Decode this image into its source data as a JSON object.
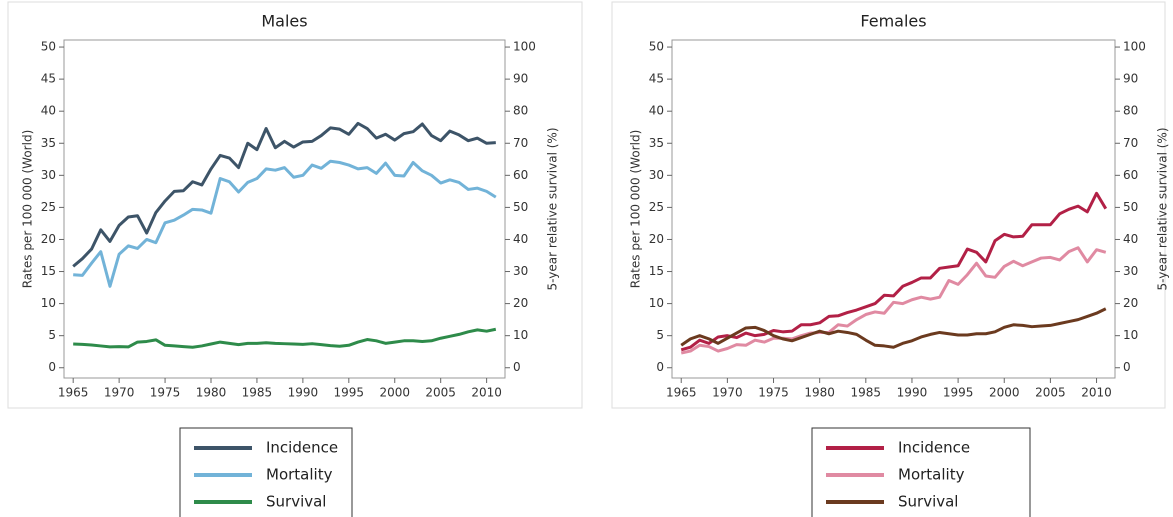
{
  "chart_data": [
    {
      "type": "line",
      "title": "Males",
      "ylabel": "Rates per 100 000 (World)",
      "y2label": "5-year relative survival (%)",
      "x": [
        1965,
        1966,
        1967,
        1968,
        1969,
        1970,
        1971,
        1972,
        1973,
        1974,
        1975,
        1976,
        1977,
        1978,
        1979,
        1980,
        1981,
        1982,
        1983,
        1984,
        1985,
        1986,
        1987,
        1988,
        1989,
        1990,
        1991,
        1992,
        1993,
        1994,
        1995,
        1996,
        1997,
        1998,
        1999,
        2000,
        2001,
        2002,
        2003,
        2004,
        2005,
        2006,
        2007,
        2008,
        2009,
        2010,
        2011
      ],
      "xlim": [
        1964,
        2012
      ],
      "xticks": [
        1965,
        1970,
        1975,
        1980,
        1985,
        1990,
        1995,
        2000,
        2005,
        2010
      ],
      "ylim": [
        -1.6,
        51.1
      ],
      "yticks": [
        0,
        5,
        10,
        15,
        20,
        25,
        30,
        35,
        40,
        45,
        50
      ],
      "y2lim": [
        -3.2,
        102.2
      ],
      "y2ticks": [
        0,
        10,
        20,
        30,
        40,
        50,
        60,
        70,
        80,
        90,
        100
      ],
      "y_tick_color": "#4a6580",
      "y2_tick_color": "#3a9a6a",
      "legend": "bottom",
      "series": [
        {
          "name": "Incidence",
          "color": "#3d5468",
          "values": [
            15.8,
            17,
            18.5,
            21.5,
            19.7,
            22.2,
            23.5,
            23.7,
            21,
            24.2,
            26,
            27.5,
            27.6,
            29,
            28.5,
            31,
            33.1,
            32.7,
            31.2,
            35,
            34,
            37.3,
            34.3,
            35.3,
            34.4,
            35.2,
            35.3,
            36.2,
            37.4,
            37.2,
            36.4,
            38.1,
            37.3,
            35.8,
            36.4,
            35.5,
            36.5,
            36.8,
            38,
            36.2,
            35.4,
            36.9,
            36.3,
            35.4,
            35.8,
            35,
            35.1
          ]
        },
        {
          "name": "Mortality",
          "color": "#72b3d8",
          "values": [
            14.5,
            14.4,
            16.3,
            18.1,
            12.7,
            17.7,
            19,
            18.6,
            20,
            19.5,
            22.6,
            23,
            23.8,
            24.7,
            24.6,
            24.1,
            29.5,
            29,
            27.4,
            28.9,
            29.5,
            31,
            30.8,
            31.2,
            29.7,
            30,
            31.6,
            31.1,
            32.2,
            32,
            31.6,
            31,
            31.2,
            30.3,
            31.9,
            30,
            29.9,
            32,
            30.7,
            30,
            28.8,
            29.3,
            28.9,
            27.8,
            28,
            27.5,
            26.6
          ]
        },
        {
          "name": "Survival",
          "color": "#2e8b4a",
          "axis": "y2",
          "values": [
            7.4,
            7.3,
            7.1,
            6.8,
            6.5,
            6.6,
            6.5,
            8,
            8.2,
            8.7,
            7,
            6.8,
            6.6,
            6.4,
            6.8,
            7.4,
            8,
            7.6,
            7.2,
            7.6,
            7.6,
            7.8,
            7.6,
            7.5,
            7.4,
            7.3,
            7.5,
            7.2,
            6.9,
            6.7,
            7,
            8,
            8.8,
            8.4,
            7.6,
            8,
            8.4,
            8.4,
            8.2,
            8.4,
            9.2,
            9.8,
            10.4,
            11.2,
            11.8,
            11.4,
            12
          ]
        }
      ]
    },
    {
      "type": "line",
      "title": "Females",
      "ylabel": "Rates per 100 000 (World)",
      "y2label": "5-year relative survival (%)",
      "x": [
        1965,
        1966,
        1967,
        1968,
        1969,
        1970,
        1971,
        1972,
        1973,
        1974,
        1975,
        1976,
        1977,
        1978,
        1979,
        1980,
        1981,
        1982,
        1983,
        1984,
        1985,
        1986,
        1987,
        1988,
        1989,
        1990,
        1991,
        1992,
        1993,
        1994,
        1995,
        1996,
        1997,
        1998,
        1999,
        2000,
        2001,
        2002,
        2003,
        2004,
        2005,
        2006,
        2007,
        2008,
        2009,
        2010,
        2011
      ],
      "xlim": [
        1964,
        2012
      ],
      "xticks": [
        1965,
        1970,
        1975,
        1980,
        1985,
        1990,
        1995,
        2000,
        2005,
        2010
      ],
      "ylim": [
        -1.6,
        51.1
      ],
      "yticks": [
        0,
        5,
        10,
        15,
        20,
        25,
        30,
        35,
        40,
        45,
        50
      ],
      "y2lim": [
        -3.2,
        102.2
      ],
      "y2ticks": [
        0,
        10,
        20,
        30,
        40,
        50,
        60,
        70,
        80,
        90,
        100
      ],
      "y_tick_color": "#b22046",
      "y2_tick_color": "#7a4a30",
      "legend": "bottom",
      "series": [
        {
          "name": "Incidence",
          "color": "#b22046",
          "values": [
            2.8,
            3.2,
            4.3,
            3.8,
            4.8,
            5,
            4.7,
            5.4,
            5,
            5.2,
            5.8,
            5.6,
            5.7,
            6.7,
            6.7,
            7,
            8,
            8.1,
            8.6,
            9,
            9.5,
            10,
            11.3,
            11.2,
            12.7,
            13.3,
            14,
            14,
            15.5,
            15.7,
            15.9,
            18.5,
            18,
            16.5,
            19.8,
            20.8,
            20.4,
            20.5,
            22.3,
            22.3,
            22.3,
            24,
            24.7,
            25.2,
            24.3,
            27.2,
            24.8
          ]
        },
        {
          "name": "Mortality",
          "color": "#e08aa2",
          "values": [
            2.3,
            2.6,
            3.5,
            3.3,
            2.6,
            3,
            3.6,
            3.5,
            4.3,
            4,
            4.6,
            4.6,
            4.5,
            5,
            5.4,
            5.5,
            5.5,
            6.7,
            6.5,
            7.5,
            8.3,
            8.7,
            8.5,
            10.2,
            10,
            10.6,
            11,
            10.7,
            11,
            13.6,
            13,
            14.5,
            16.3,
            14.3,
            14.1,
            15.8,
            16.6,
            15.9,
            16.5,
            17.1,
            17.2,
            16.8,
            18.1,
            18.7,
            16.5,
            18.4,
            18
          ]
        },
        {
          "name": "Survival",
          "color": "#6b3a1f",
          "axis": "y2",
          "values": [
            7,
            9,
            10,
            9,
            7.6,
            9.2,
            10.8,
            12.4,
            12.6,
            11.6,
            10,
            9,
            8.4,
            9.4,
            10.4,
            11.4,
            10.6,
            11.4,
            11,
            10.4,
            8.6,
            7,
            6.8,
            6.4,
            7.6,
            8.4,
            9.6,
            10.4,
            11,
            10.6,
            10.2,
            10.2,
            10.6,
            10.6,
            11.2,
            12.6,
            13.4,
            13.2,
            12.8,
            13,
            13.2,
            13.8,
            14.4,
            15,
            16,
            17,
            18.4
          ]
        }
      ]
    }
  ]
}
